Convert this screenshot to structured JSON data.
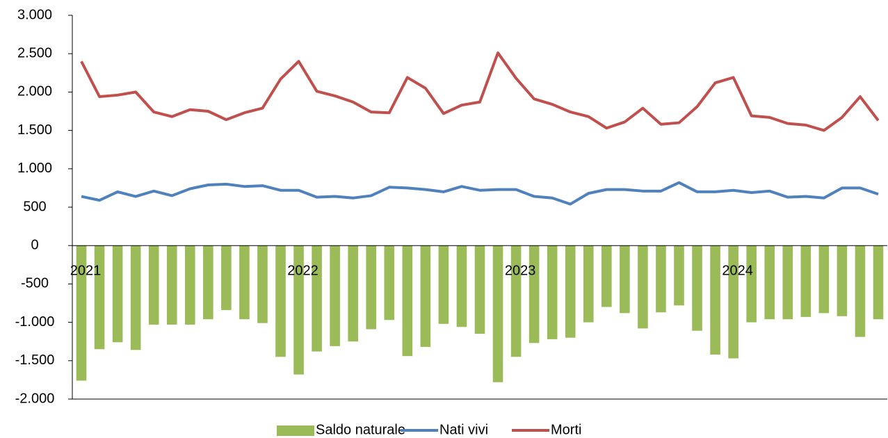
{
  "chart_data": {
    "type": "bar_line",
    "categories": [
      "2021",
      null,
      null,
      null,
      null,
      null,
      null,
      null,
      null,
      null,
      null,
      null,
      "2022",
      null,
      null,
      null,
      null,
      null,
      null,
      null,
      null,
      null,
      null,
      null,
      "2023",
      null,
      null,
      null,
      null,
      null,
      null,
      null,
      null,
      null,
      null,
      null,
      "2024",
      null,
      null,
      null,
      null,
      null,
      null,
      null,
      null
    ],
    "series": [
      {
        "name": "Saldo naturale",
        "type": "bar",
        "color": "#9bbb59",
        "values": [
          -1760,
          -1350,
          -1260,
          -1360,
          -1030,
          -1030,
          -1030,
          -960,
          -840,
          -960,
          -1010,
          -1450,
          -1680,
          -1380,
          -1310,
          -1250,
          -1090,
          -970,
          -1440,
          -1320,
          -1020,
          -1060,
          -1150,
          -1780,
          -1450,
          -1270,
          -1220,
          -1200,
          -1000,
          -800,
          -880,
          -1080,
          -870,
          -780,
          -1110,
          -1420,
          -1470,
          -1000,
          -960,
          -960,
          -930,
          -880,
          -920,
          -1190,
          -960
        ]
      },
      {
        "name": "Nati vivi",
        "type": "line",
        "color": "#4f81bd",
        "values": [
          640,
          590,
          700,
          640,
          710,
          650,
          740,
          790,
          800,
          770,
          780,
          720,
          720,
          630,
          640,
          620,
          650,
          760,
          750,
          730,
          700,
          770,
          720,
          730,
          730,
          640,
          620,
          540,
          680,
          730,
          730,
          710,
          710,
          820,
          700,
          700,
          720,
          690,
          710,
          630,
          640,
          620,
          750,
          750,
          670
        ]
      },
      {
        "name": "Morti",
        "type": "line",
        "color": "#c0504d",
        "values": [
          2400,
          1940,
          1960,
          2000,
          1740,
          1680,
          1770,
          1750,
          1640,
          1730,
          1790,
          2170,
          2400,
          2010,
          1950,
          1870,
          1740,
          1730,
          2190,
          2050,
          1720,
          1830,
          1870,
          2510,
          2180,
          1910,
          1840,
          1740,
          1680,
          1530,
          1610,
          1790,
          1580,
          1600,
          1810,
          2120,
          2190,
          1690,
          1670,
          1590,
          1570,
          1500,
          1670,
          1940,
          1630
        ]
      }
    ],
    "ylim": [
      -2000,
      3000
    ],
    "yticks": [
      {
        "value": -2000,
        "label": "-2.000"
      },
      {
        "value": -1500,
        "label": "-1.500"
      },
      {
        "value": -1000,
        "label": "-1.000"
      },
      -500,
      0,
      500,
      {
        "value": 1000,
        "label": "1.000"
      },
      {
        "value": 1500,
        "label": "1.500"
      },
      {
        "value": 2000,
        "label": "2.000"
      },
      {
        "value": 2500,
        "label": "2.500"
      },
      {
        "value": 3000,
        "label": "3.000"
      }
    ],
    "grid": false,
    "legend": "bottom"
  }
}
